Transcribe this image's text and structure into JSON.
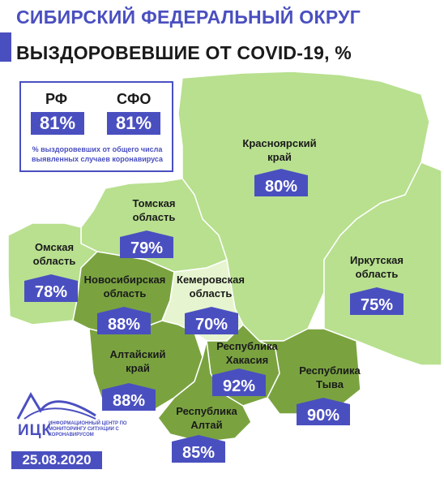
{
  "header": {
    "title": "СИБИРСКИЙ ФЕДЕРАЛЬНЫЙ ОКРУГ",
    "subtitle": "ВЫЗДОРОВЕВШИЕ ОТ COVID-19, %"
  },
  "legend": {
    "rf_label": "РФ",
    "rf_value": "81%",
    "sfo_label": "СФО",
    "sfo_value": "81%",
    "note": "% выздоровевших от общего числа выявленных случаев коронавируса"
  },
  "regions": [
    {
      "name": "Красноярский\nкрай",
      "value": "80%",
      "color": "#b8e08f"
    },
    {
      "name": "Томская\nобласть",
      "value": "79%",
      "color": "#b8e08f"
    },
    {
      "name": "Омская\nобласть",
      "value": "78%",
      "color": "#b8e08f"
    },
    {
      "name": "Новосибирская\nобласть",
      "value": "88%",
      "color": "#7aa340"
    },
    {
      "name": "Кемеровская\nобласть",
      "value": "70%",
      "color": "#e6f5cf"
    },
    {
      "name": "Иркутская\nобласть",
      "value": "75%",
      "color": "#b8e08f"
    },
    {
      "name": "Республика\nХакасия",
      "value": "92%",
      "color": "#7aa340"
    },
    {
      "name": "Алтайский\nкрай",
      "value": "88%",
      "color": "#7aa340"
    },
    {
      "name": "Республика\nТыва",
      "value": "90%",
      "color": "#7aa340"
    },
    {
      "name": "Республика\nАлтай",
      "value": "85%",
      "color": "#7aa340"
    }
  ],
  "logo": {
    "name": "ИЦК",
    "subtitle": "ИНФОРМАЦИОННЫЙ ЦЕНТР ПО МОНИТОРИНГУ СИТУАЦИИ С КОРОНАВИРУСОМ"
  },
  "date": "25.08.2020",
  "colors": {
    "accent": "#4a4fc0",
    "light_green": "#b8e08f",
    "dark_green": "#7aa340",
    "pale_green": "#e6f5cf"
  }
}
